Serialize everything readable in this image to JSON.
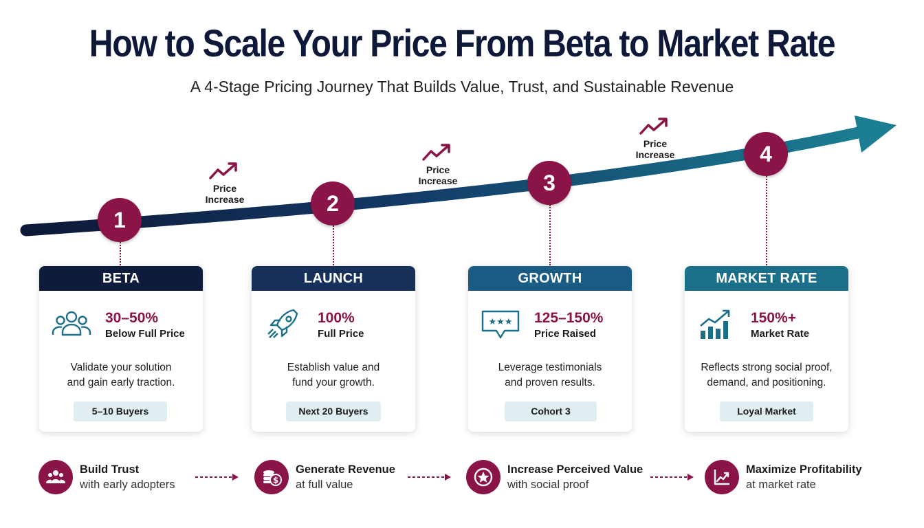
{
  "title": "How to Scale Your Price From Beta to Market Rate",
  "subtitle": "A 4-Stage Pricing Journey That Builds Value, Trust, and Sustainable Revenue",
  "colors": {
    "maroon": "#8a1447",
    "navy": "#0e1838",
    "arrow_end": "#1b7e93",
    "badge_bg": "#e1eef1"
  },
  "price_increase": {
    "line1": "Price",
    "line2": "Increase",
    "icon": "trending-up-icon"
  },
  "stages": [
    {
      "number": "1",
      "name": "BETA",
      "header_color": "#0f1b3d",
      "icon": "people-group-icon",
      "percent": "30–50%",
      "note": "Below Full Price",
      "desc_line1": "Validate your solution",
      "desc_line2": "and gain early traction.",
      "badge": "5–10 Buyers"
    },
    {
      "number": "2",
      "name": "LAUNCH",
      "header_color": "#16305a",
      "icon": "rocket-icon",
      "percent": "100%",
      "note": "Full Price",
      "desc_line1": "Establish value and",
      "desc_line2": "fund your growth.",
      "badge": "Next 20 Buyers"
    },
    {
      "number": "3",
      "name": "GROWTH",
      "header_color": "#1a5c83",
      "icon": "rating-speech-bubble-icon",
      "percent": "125–150%",
      "note": "Price Raised",
      "desc_line1": "Leverage testimonials",
      "desc_line2": "and proven results.",
      "badge": "Cohort 3"
    },
    {
      "number": "4",
      "name": "MARKET RATE",
      "header_color": "#1c6f88",
      "icon": "bar-chart-growth-icon",
      "percent": "150%+",
      "note": "Market Rate",
      "desc_line1": "Reflects strong social proof,",
      "desc_line2": "demand, and positioning.",
      "badge": "Loyal Market"
    }
  ],
  "benefits": [
    {
      "icon": "people-icon",
      "title": "Build Trust",
      "sub": "with early adopters"
    },
    {
      "icon": "coins-dollar-icon",
      "title": "Generate Revenue",
      "sub": "at full value"
    },
    {
      "icon": "star-badge-icon",
      "title": "Increase Perceived Value",
      "sub": "with social proof"
    },
    {
      "icon": "line-chart-icon",
      "title": "Maximize Profitability",
      "sub": "at market rate"
    }
  ]
}
